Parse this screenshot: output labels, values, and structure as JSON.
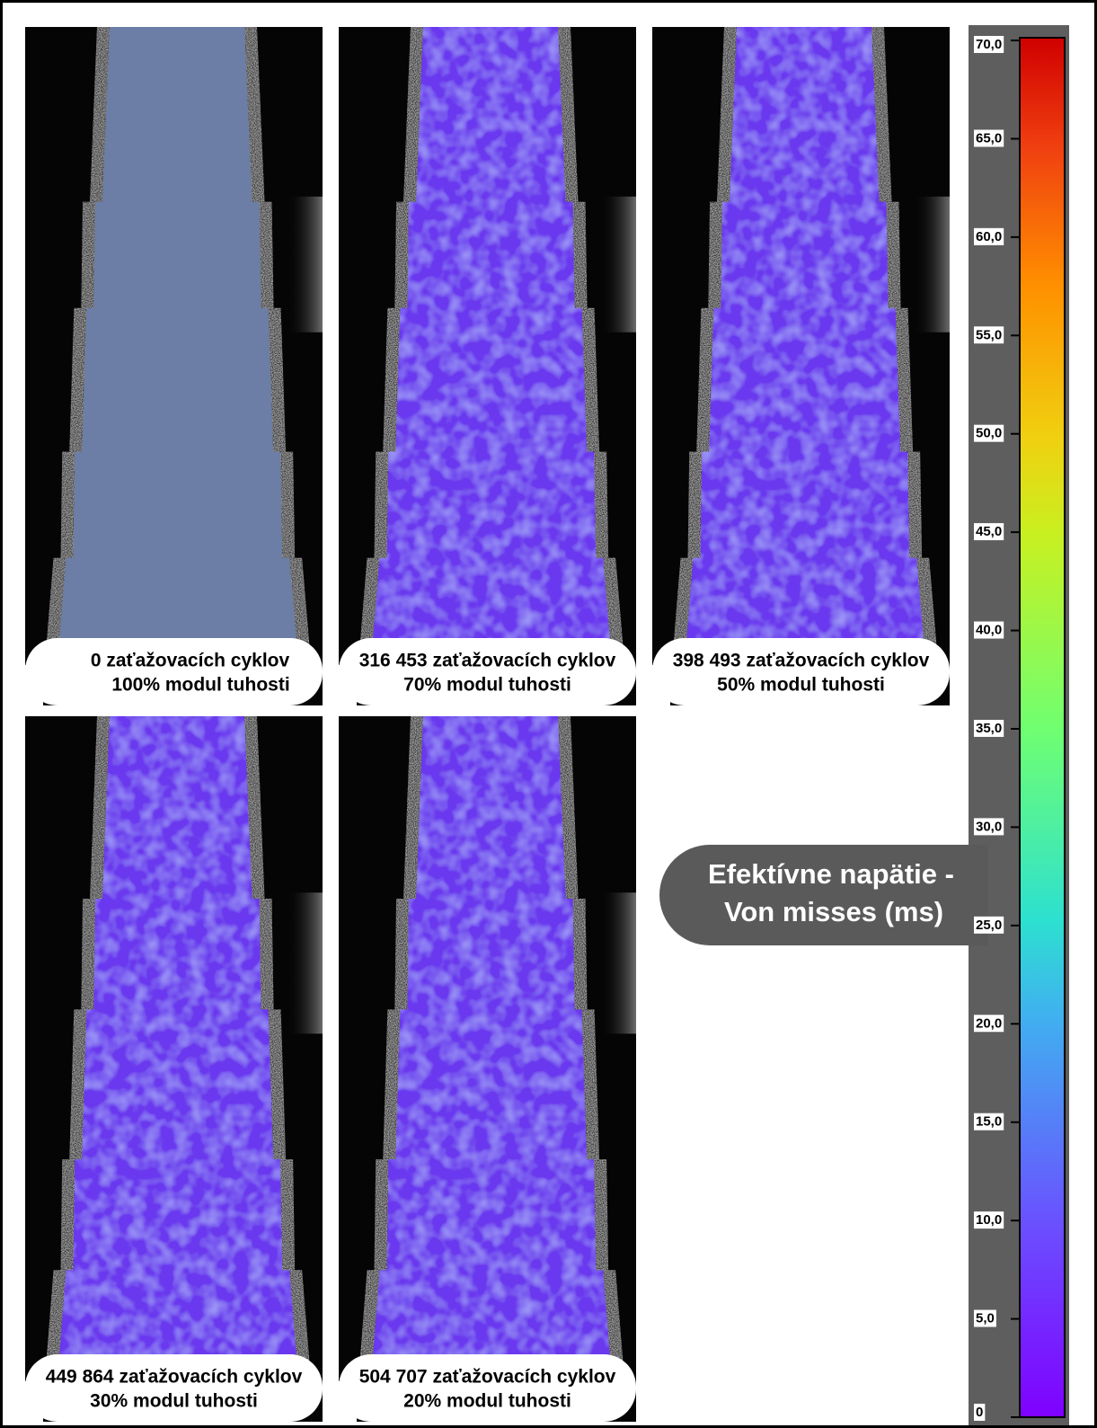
{
  "panels": [
    {
      "cycles": "0 zaťažovacích cyklov",
      "modulus": "100% modul tuhosti"
    },
    {
      "cycles": "316 453 zaťažovacích cyklov",
      "modulus": "70% modul tuhosti"
    },
    {
      "cycles": "398 493 zaťažovacích cyklov",
      "modulus": "50% modul tuhosti"
    },
    {
      "cycles": "449 864 zaťažovacích cyklov",
      "modulus": "30% modul tuhosti"
    },
    {
      "cycles": "504 707 zaťažovacích cyklov",
      "modulus": "20% modul tuhosti"
    }
  ],
  "colorbar": {
    "title": [
      "Efektívne napätie -",
      "Von misses (ms)"
    ],
    "range": [
      0,
      70
    ],
    "ticks": [
      0,
      {
        "value": 5,
        "label": "5,0"
      },
      {
        "value": 10,
        "label": "10,0"
      },
      {
        "value": 15,
        "label": "15,0"
      },
      {
        "value": 20,
        "label": "20,0"
      },
      {
        "value": 25,
        "label": "25,0"
      },
      {
        "value": 30,
        "label": "30,0"
      },
      {
        "value": 35,
        "label": "35,0"
      },
      {
        "value": 40,
        "label": "40,0"
      },
      {
        "value": 45,
        "label": "45,0"
      },
      {
        "value": 50,
        "label": "50,0"
      },
      {
        "value": 55,
        "label": "55,0"
      },
      {
        "value": 60,
        "label": "60,0"
      },
      {
        "value": 65,
        "label": "65,0"
      },
      {
        "value": 70,
        "label": "70,0"
      }
    ]
  }
}
